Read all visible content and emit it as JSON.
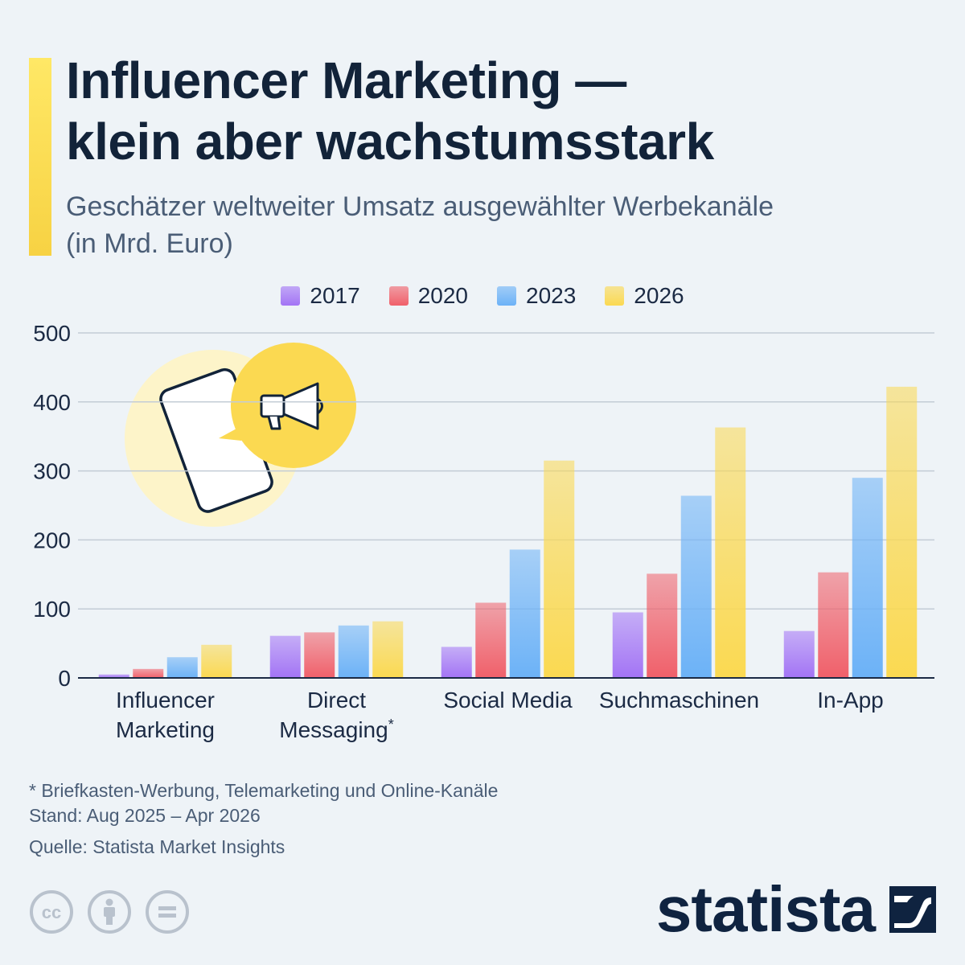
{
  "header": {
    "title_line1": "Influencer Marketing —",
    "title_line2": "klein aber wachstumsstark",
    "subtitle_line1": "Geschätzer weltweiter Umsatz ausgewählter Werbekanäle",
    "subtitle_line2": "(in Mrd. Euro)",
    "accent_color": "#f7d243"
  },
  "chart_data": {
    "type": "bar",
    "title": "Influencer Marketing — klein aber wachstumsstark",
    "subtitle": "Geschätzer weltweiter Umsatz ausgewählter Werbekanäle (in Mrd. Euro)",
    "categories": [
      [
        "Influencer",
        "Marketing"
      ],
      [
        "Direct",
        "Messaging*"
      ],
      [
        "Social Media"
      ],
      [
        "Suchmaschinen"
      ],
      [
        "In-App"
      ]
    ],
    "series": [
      {
        "name": "2017",
        "color": "#a374f5",
        "values": [
          5,
          61,
          45,
          95,
          68
        ]
      },
      {
        "name": "2020",
        "color": "#f0606a",
        "values": [
          13,
          66,
          109,
          151,
          153
        ]
      },
      {
        "name": "2023",
        "color": "#6cb2f7",
        "values": [
          30,
          76,
          186,
          264,
          290
        ]
      },
      {
        "name": "2026",
        "color": "#fbd951",
        "values": [
          48,
          82,
          315,
          363,
          422
        ]
      }
    ],
    "yticks": [
      0,
      100,
      200,
      300,
      400,
      500
    ],
    "ylim": [
      0,
      500
    ],
    "grid": true,
    "legend_position": "top"
  },
  "illustration": {
    "name": "smartphone-with-megaphone-icon",
    "circle_color": "#fdf4c9",
    "bubble_color": "#fbd951"
  },
  "footer": {
    "note": "* Briefkasten-Werbung, Telemarketing und Online-Kanäle",
    "date": "Stand: Aug 2025 – Apr 2026",
    "source": "Quelle: Statista Market Insights",
    "brand": "statista",
    "license_icons": [
      "cc-icon",
      "attribution-icon",
      "no-derivatives-icon"
    ]
  }
}
